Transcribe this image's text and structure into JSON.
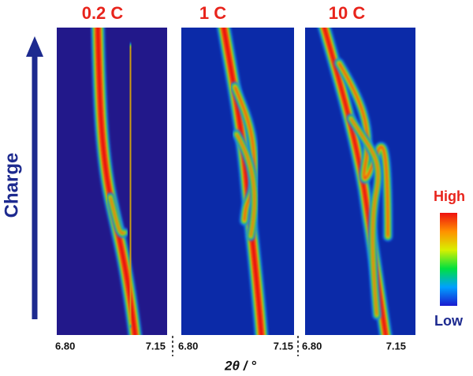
{
  "panels": [
    {
      "title": "0.2 C",
      "x_start": "6.80",
      "x_end": "7.15"
    },
    {
      "title": "1 C",
      "x_start": "6.80",
      "x_end": "7.15"
    },
    {
      "title": "10 C",
      "x_start": "6.80",
      "x_end": "7.15"
    }
  ],
  "y_label": "Charge",
  "x_label": "2θ / °",
  "colorbar": {
    "high": "High",
    "low": "Low"
  }
}
